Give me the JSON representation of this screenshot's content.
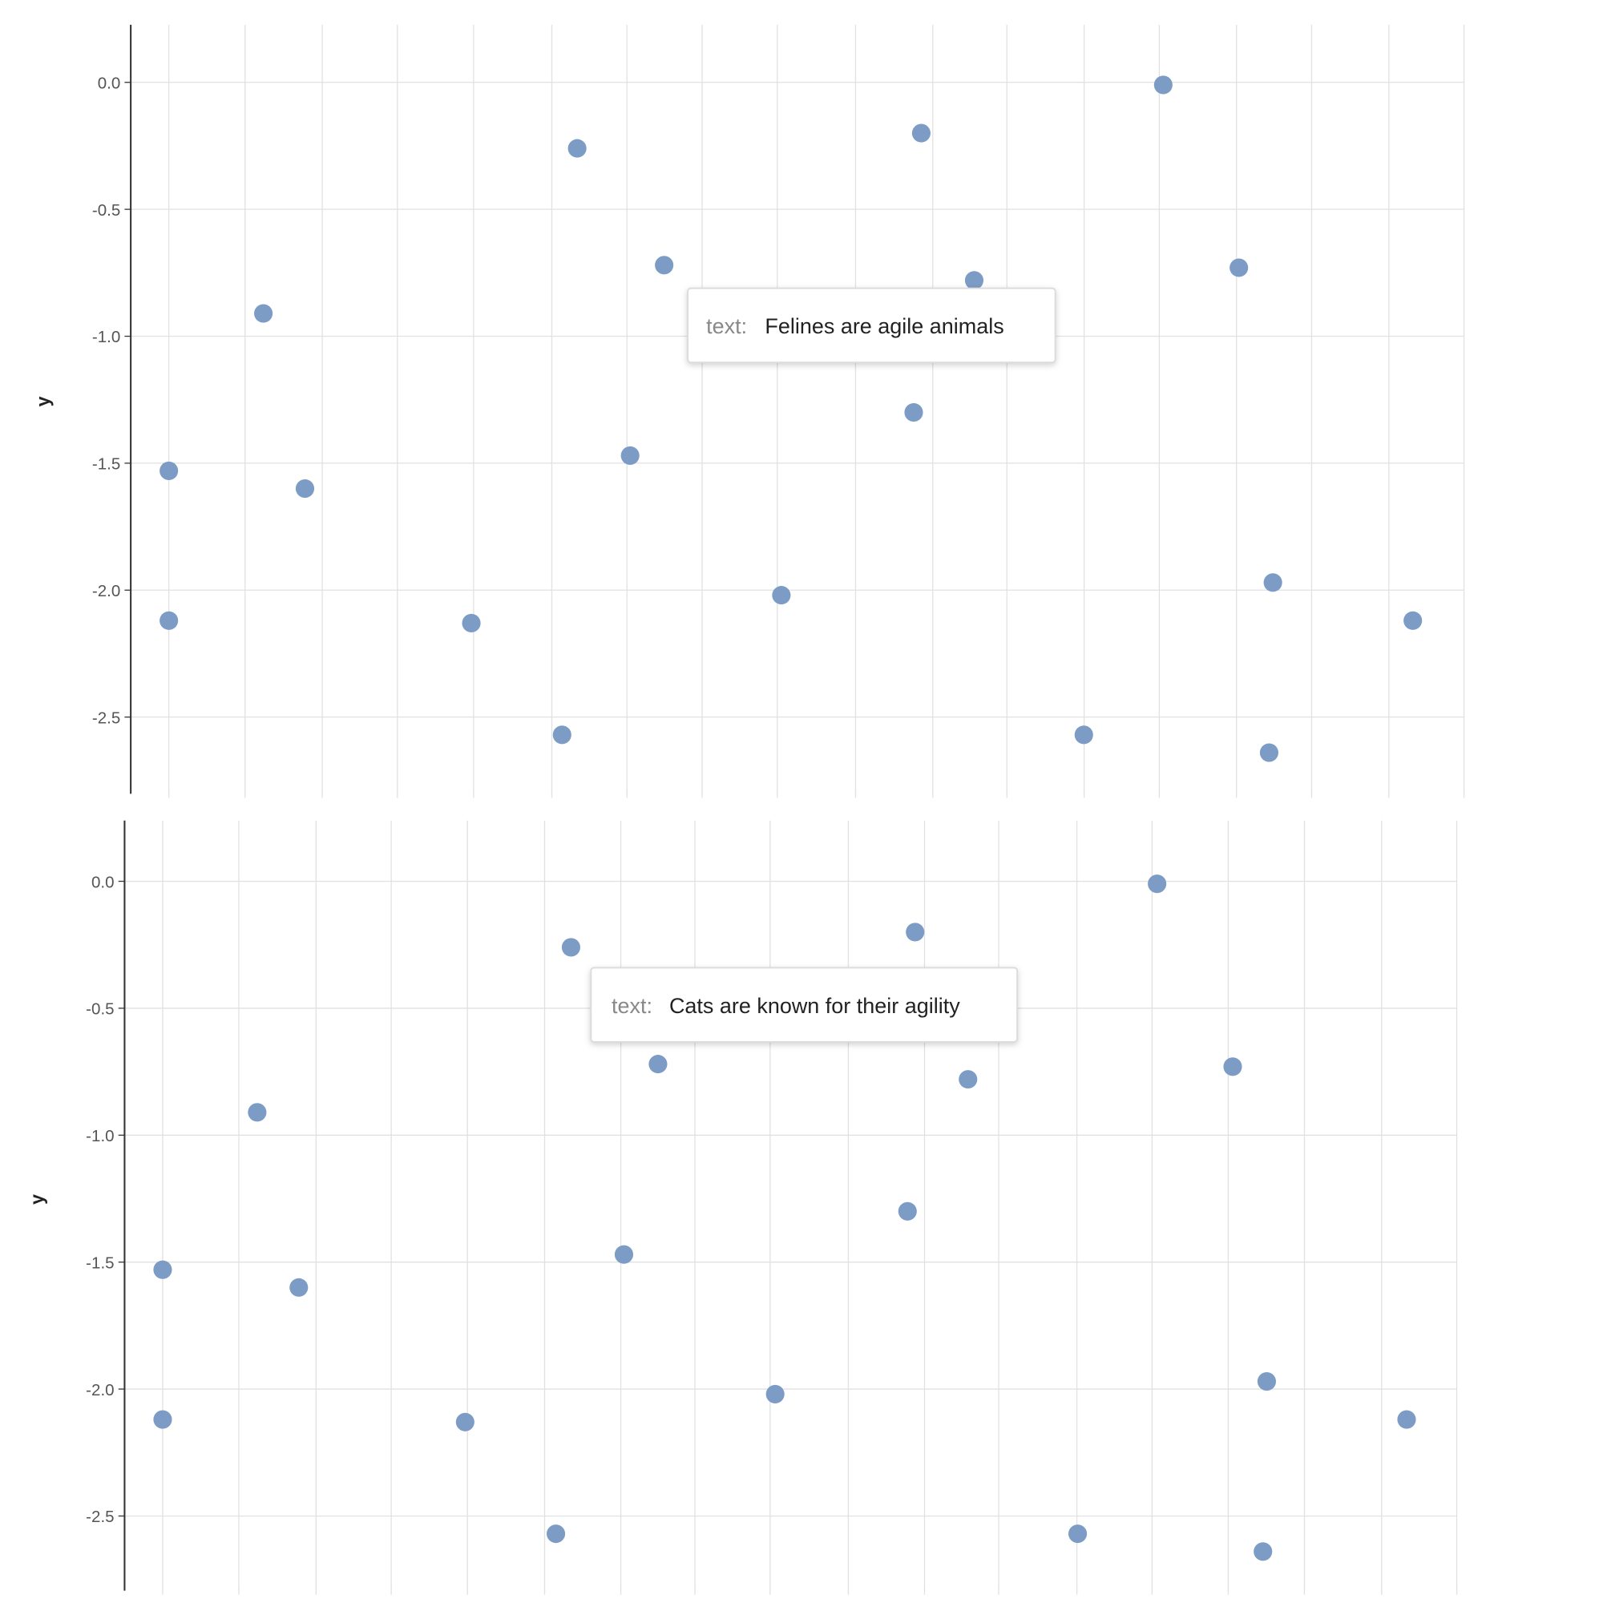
{
  "colors": {
    "point": "#7c9cc5",
    "grid": "#e1e1e1",
    "axis": "#333333",
    "tick_text": "#555555",
    "tooltip_key": "#888888",
    "tooltip_value": "#222222"
  },
  "chart_data": [
    {
      "type": "scatter",
      "ylabel": "y",
      "ylim": [
        -2.8,
        0.22
      ],
      "yticks": [
        "0.0",
        "-0.5",
        "-1.0",
        "-1.5",
        "-2.0",
        "-2.5"
      ],
      "grid": true,
      "points": [
        {
          "x": 0.5,
          "y": -1.53
        },
        {
          "x": 0.5,
          "y": -2.12
        },
        {
          "x": 1.75,
          "y": -0.91
        },
        {
          "x": 2.3,
          "y": -1.6
        },
        {
          "x": 4.5,
          "y": -2.13
        },
        {
          "x": 5.7,
          "y": -2.57
        },
        {
          "x": 5.9,
          "y": -0.26
        },
        {
          "x": 6.6,
          "y": -1.47
        },
        {
          "x": 7.05,
          "y": -0.72
        },
        {
          "x": 8.6,
          "y": -2.02
        },
        {
          "x": 10.35,
          "y": -1.3
        },
        {
          "x": 10.45,
          "y": -0.2
        },
        {
          "x": 11.15,
          "y": -0.78
        },
        {
          "x": 12.6,
          "y": -2.57
        },
        {
          "x": 13.65,
          "y": -0.01
        },
        {
          "x": 14.65,
          "y": -0.73
        },
        {
          "x": 15.05,
          "y": -2.64
        },
        {
          "x": 15.1,
          "y": -1.97
        },
        {
          "x": 16.95,
          "y": -2.12
        }
      ],
      "tooltip": {
        "key": "text:",
        "value": "Felines are agile animals"
      }
    },
    {
      "type": "scatter",
      "ylabel": "y",
      "ylim": [
        -2.8,
        0.22
      ],
      "yticks": [
        "0.0",
        "-0.5",
        "-1.0",
        "-1.5",
        "-2.0",
        "-2.5"
      ],
      "grid": true,
      "points": [
        {
          "x": 0.5,
          "y": -1.53
        },
        {
          "x": 0.5,
          "y": -2.12
        },
        {
          "x": 1.75,
          "y": -0.91
        },
        {
          "x": 2.3,
          "y": -1.6
        },
        {
          "x": 4.5,
          "y": -2.13
        },
        {
          "x": 5.7,
          "y": -2.57
        },
        {
          "x": 5.9,
          "y": -0.26
        },
        {
          "x": 6.6,
          "y": -1.47
        },
        {
          "x": 7.05,
          "y": -0.72
        },
        {
          "x": 8.6,
          "y": -2.02
        },
        {
          "x": 10.35,
          "y": -1.3
        },
        {
          "x": 10.45,
          "y": -0.2
        },
        {
          "x": 11.15,
          "y": -0.78
        },
        {
          "x": 12.6,
          "y": -2.57
        },
        {
          "x": 13.65,
          "y": -0.01
        },
        {
          "x": 14.65,
          "y": -0.73
        },
        {
          "x": 15.05,
          "y": -2.64
        },
        {
          "x": 15.1,
          "y": -1.97
        },
        {
          "x": 16.95,
          "y": -2.12
        }
      ],
      "tooltip": {
        "key": "text:",
        "value": "Cats are known for their agility"
      }
    }
  ]
}
